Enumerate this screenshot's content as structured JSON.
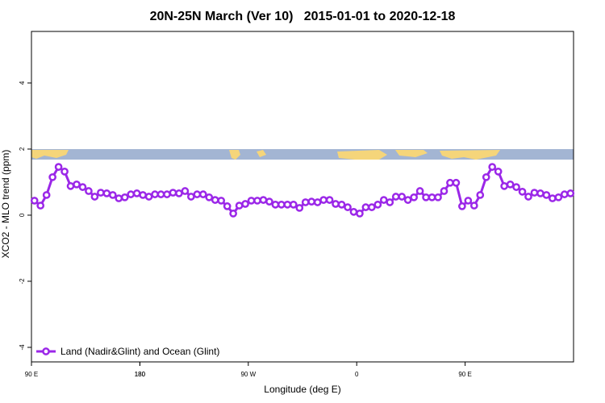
{
  "chart_data": {
    "type": "line",
    "title": "20N-25N March (Ver 10)   2015-01-01 to 2020-12-18",
    "x_label": "Longitude (deg E)",
    "y_label": "XCO2 - MLO trend (ppm)",
    "x": [
      92.5,
      97.5,
      102.5,
      107.5,
      112.5,
      117.5,
      122.5,
      127.5,
      132.5,
      137.5,
      142.5,
      147.5,
      152.5,
      157.5,
      162.5,
      167.5,
      172.5,
      177.5,
      182.5,
      187.5,
      192.5,
      197.5,
      202.5,
      207.5,
      212.5,
      217.5,
      222.5,
      227.5,
      232.5,
      237.5,
      242.5,
      247.5,
      252.5,
      257.5,
      262.5,
      267.5,
      272.5,
      277.5,
      282.5,
      287.5,
      292.5,
      297.5,
      302.5,
      307.5,
      312.5,
      317.5,
      322.5,
      327.5,
      332.5,
      337.5,
      342.5,
      347.5,
      352.5,
      357.5,
      362.5,
      367.5,
      372.5,
      377.5,
      382.5,
      387.5,
      392.5,
      397.5,
      402.5,
      407.5,
      412.5,
      417.5,
      422.5,
      427.5,
      432.5,
      437.5,
      442.5,
      447.5,
      452.5,
      457.5,
      462.5,
      467.5,
      472.5,
      477.5,
      482.5,
      487.5,
      492.5,
      497.5,
      502.5,
      507.5,
      512.5,
      517.5,
      522.5,
      527.5,
      532.5,
      537.5
    ],
    "series": [
      {
        "name": "Land (Nadir&Glint) and Ocean (Glint)",
        "color": "#9b27e8",
        "values": [
          0.44,
          0.29,
          0.61,
          1.15,
          1.46,
          1.32,
          0.88,
          0.93,
          0.85,
          0.73,
          0.56,
          0.68,
          0.66,
          0.61,
          0.51,
          0.54,
          0.63,
          0.66,
          0.61,
          0.56,
          0.63,
          0.63,
          0.63,
          0.68,
          0.66,
          0.73,
          0.56,
          0.63,
          0.63,
          0.54,
          0.46,
          0.44,
          0.27,
          0.05,
          0.29,
          0.34,
          0.44,
          0.44,
          0.46,
          0.41,
          0.32,
          0.32,
          0.32,
          0.32,
          0.22,
          0.39,
          0.41,
          0.39,
          0.46,
          0.46,
          0.34,
          0.32,
          0.24,
          0.1,
          0.05,
          0.24,
          0.24,
          0.32,
          0.46,
          0.39,
          0.56,
          0.56,
          0.46,
          0.54,
          0.73,
          0.54,
          0.54,
          0.54,
          0.73,
          0.98,
          0.98,
          0.27,
          0.44,
          0.29,
          0.61,
          1.15,
          1.46,
          1.32,
          0.88,
          0.93,
          0.85,
          0.71,
          0.56,
          0.68,
          0.66,
          0.61,
          0.51,
          0.54,
          0.63,
          0.66
        ]
      }
    ],
    "xlim": [
      90,
      540
    ],
    "xticks": [
      {
        "value": 90,
        "label": "90 E"
      },
      180,
      {
        "value": 270,
        "label": "90 W"
      },
      {
        "value": 360,
        "label": "0"
      },
      {
        "value": 450,
        "label": "90 E"
      },
      180.0001
    ],
    "ylim": [
      -4.44,
      5.56
    ],
    "yticks": [
      -4,
      -2,
      0,
      2,
      4
    ],
    "legend": "bottom-left"
  }
}
